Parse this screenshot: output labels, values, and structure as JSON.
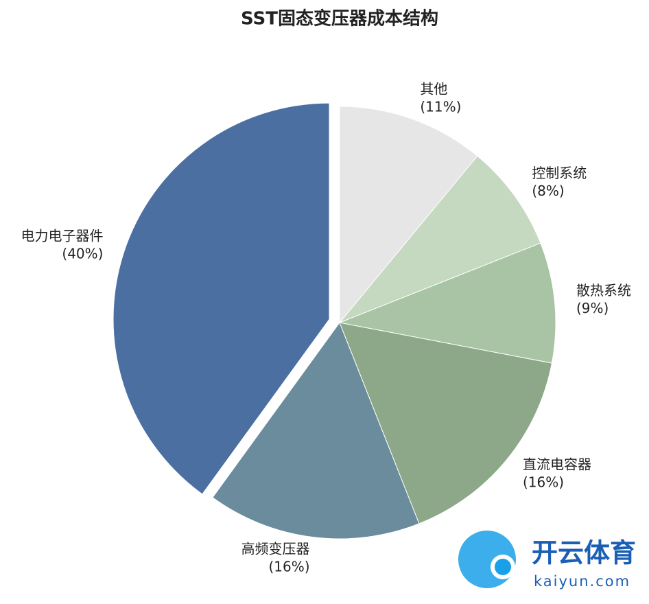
{
  "chart_data": {
    "type": "pie",
    "title": "SST固态变压器成本结构",
    "categories": [
      "电力电子器件",
      "高频变压器",
      "直流电容器",
      "散热系统",
      "控制系统",
      "其他"
    ],
    "values": [
      40,
      16,
      16,
      9,
      8,
      11
    ],
    "value_labels": [
      "(40%)",
      "(16%)",
      "(16%)",
      "(9%)",
      "(8%)",
      "(11%)"
    ],
    "colors": [
      "#4a6fa0",
      "#6a8c9c",
      "#8ca888",
      "#a9c4a4",
      "#c5d8c0",
      "#e6e6e6"
    ],
    "explode": [
      true,
      false,
      false,
      false,
      false,
      false
    ],
    "start_angle": 90,
    "direction": "counterclockwise"
  },
  "watermark": {
    "text": "开云体育",
    "url": "kaiyun.com"
  }
}
